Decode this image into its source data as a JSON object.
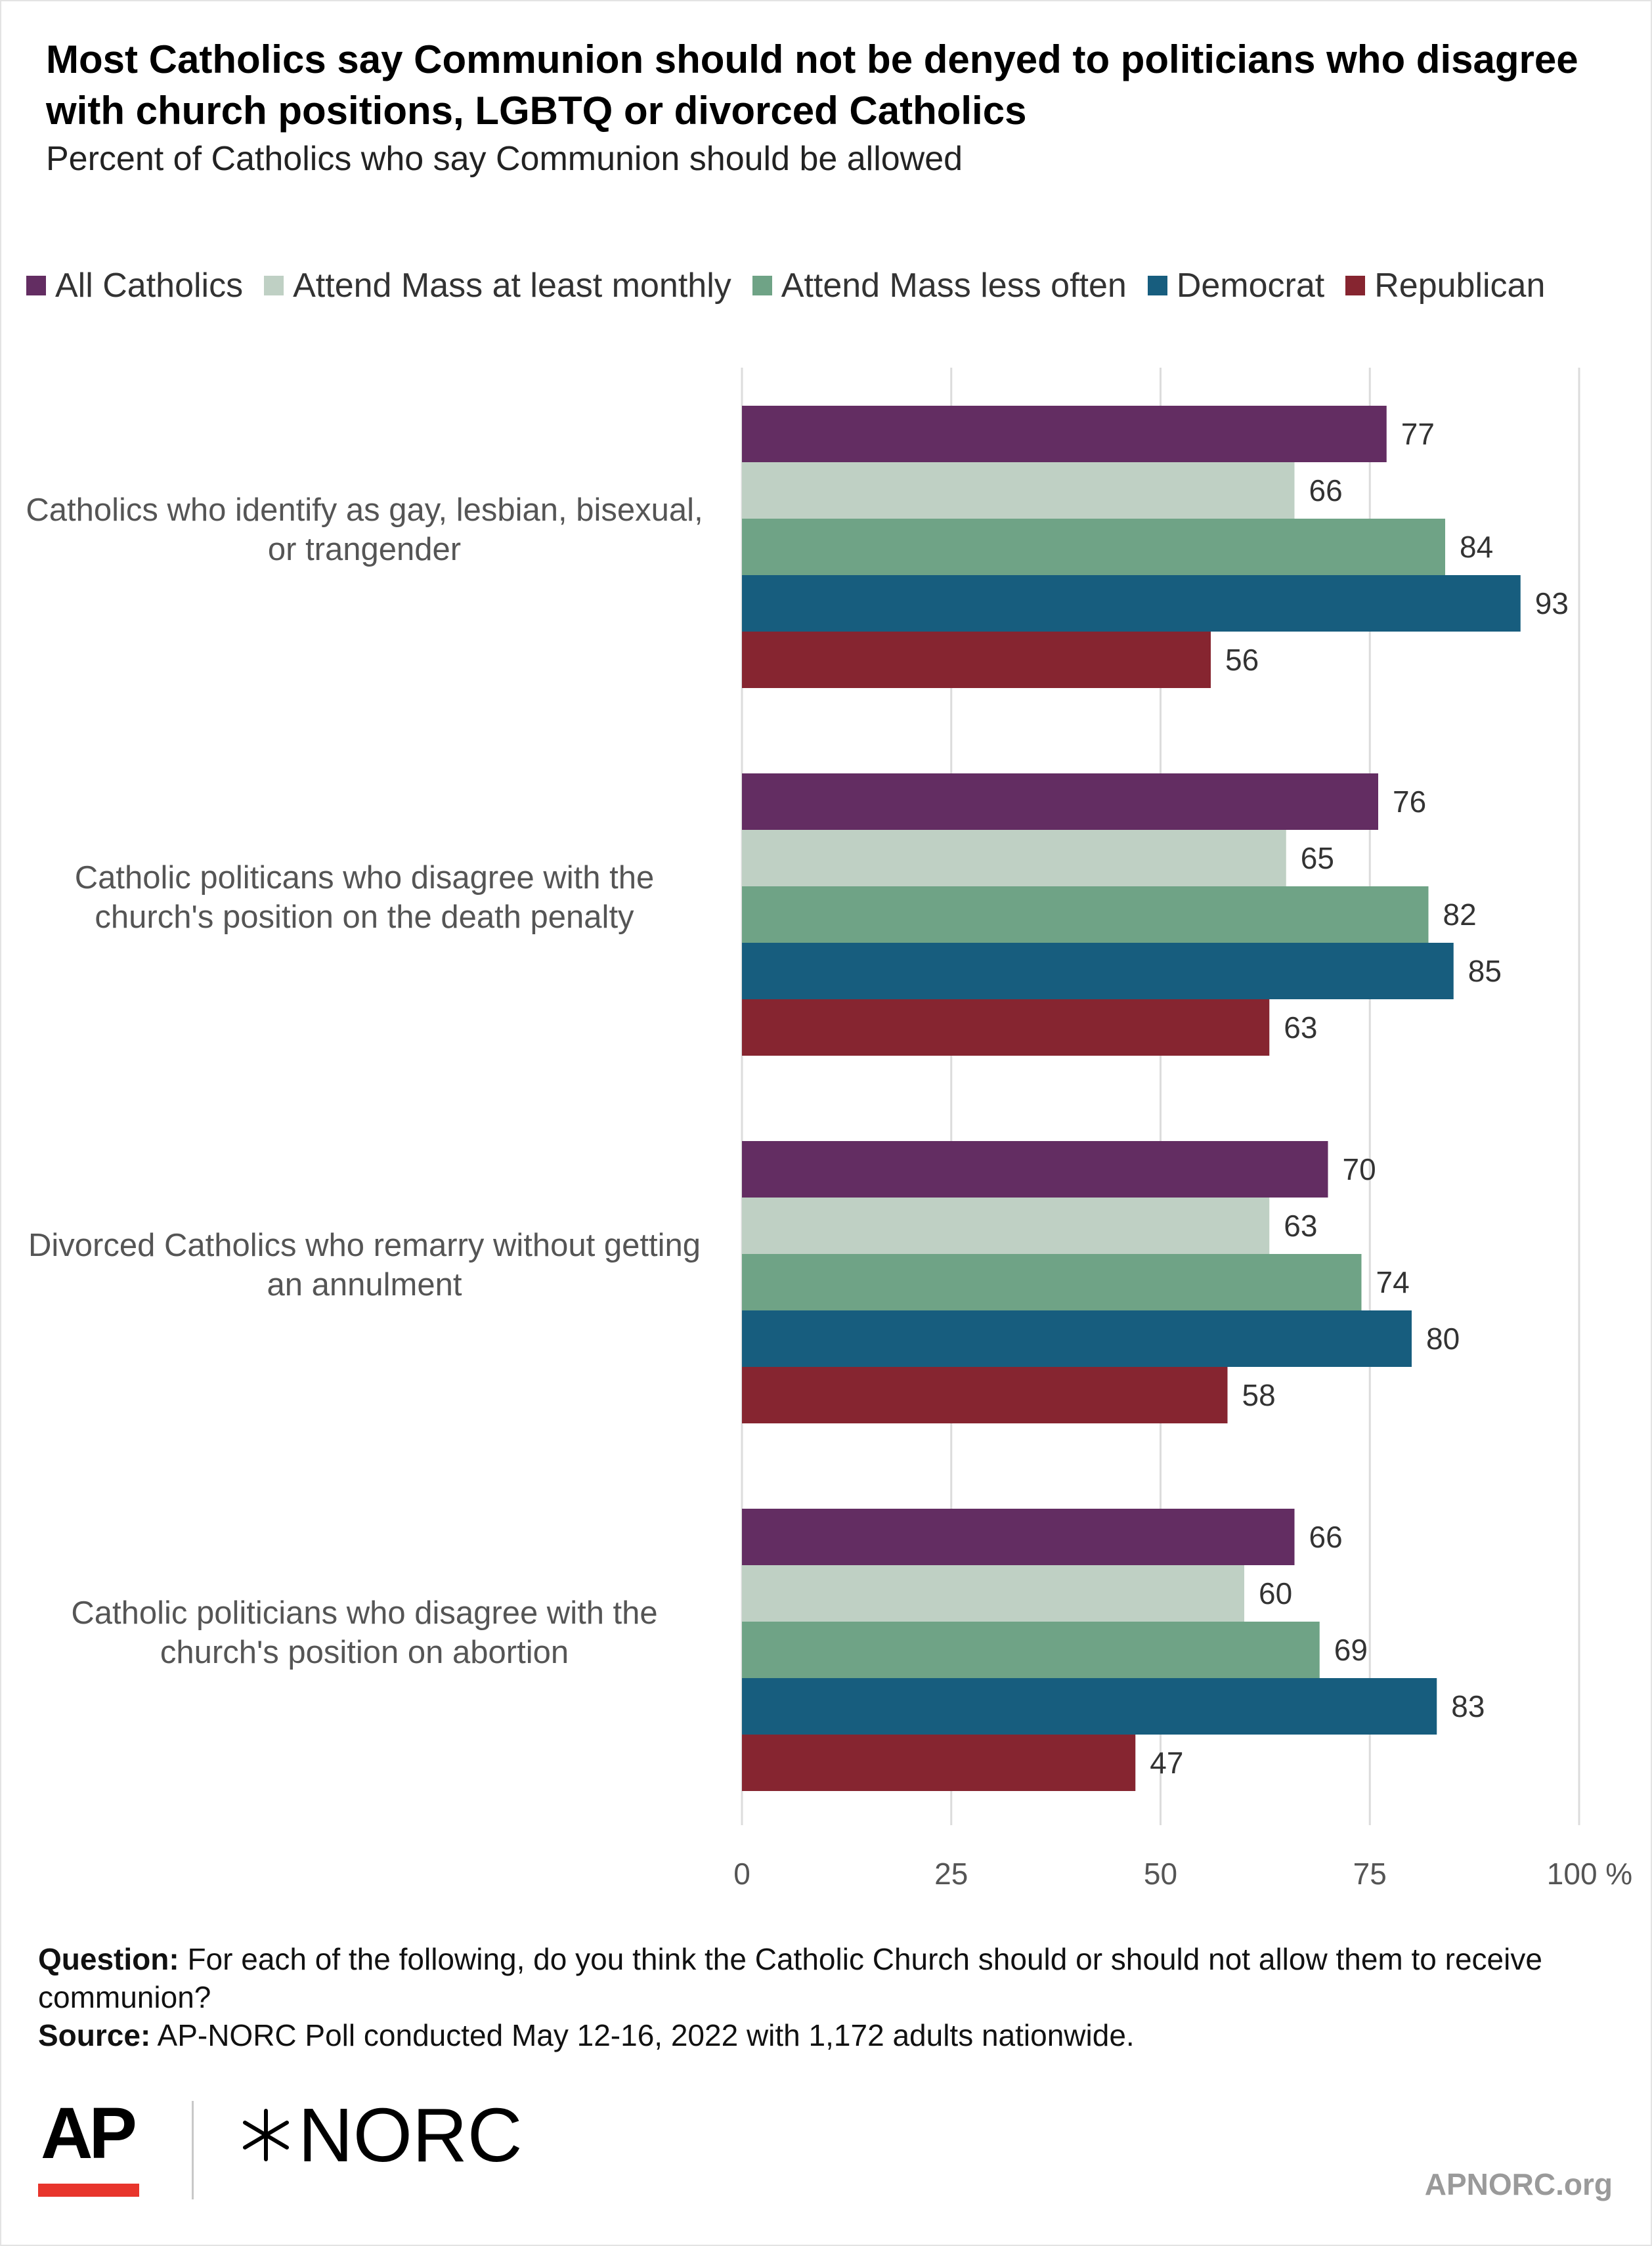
{
  "title": "Most Catholics say Communion should not be denyed to politicians who disagree with church positions, LGBTQ or divorced Catholics",
  "subtitle": "Percent of Catholics who say Communion should be allowed",
  "legend": [
    {
      "label": "All Catholics",
      "color": "#632d62"
    },
    {
      "label": "Attend Mass at least monthly",
      "color": "#bfd0c4"
    },
    {
      "label": "Attend Mass less often",
      "color": "#6fa386"
    },
    {
      "label": "Democrat",
      "color": "#175d7e"
    },
    {
      "label": "Republican",
      "color": "#862530"
    }
  ],
  "chart_data": {
    "type": "bar",
    "orientation": "horizontal",
    "categories": [
      [
        "Catholics who identify as gay, lesbian, bisexual,",
        "or trangender"
      ],
      [
        "Catholic politicans who disagree with the",
        "church's position on the death penalty"
      ],
      [
        "Divorced Catholics who remarry without getting",
        "an annulment"
      ],
      [
        "Catholic politicians who disagree with the",
        "church's position on abortion"
      ]
    ],
    "series": [
      {
        "name": "All Catholics",
        "color": "#632d62",
        "values": [
          77,
          76,
          70,
          66
        ]
      },
      {
        "name": "Attend Mass at least monthly",
        "color": "#bfd0c4",
        "values": [
          66,
          65,
          63,
          60
        ]
      },
      {
        "name": "Attend Mass less often",
        "color": "#6fa386",
        "values": [
          84,
          82,
          74,
          69
        ]
      },
      {
        "name": "Democrat",
        "color": "#175d7e",
        "values": [
          93,
          85,
          80,
          83
        ]
      },
      {
        "name": "Republican",
        "color": "#862530",
        "values": [
          56,
          63,
          58,
          47
        ]
      }
    ],
    "xlim": [
      0,
      100
    ],
    "xticks": [
      "0",
      "25",
      "50",
      "75",
      "100 %"
    ],
    "grid": true,
    "legend_position": "top"
  },
  "footer": {
    "question_label": "Question:",
    "question_text": "For each of the following, do you think the Catholic Church should or should not allow them to receive communion?",
    "source_label": "Source:",
    "source_text": "AP-NORC Poll conducted May 12-16, 2022 with 1,172 adults nationwide."
  },
  "logos": {
    "ap": "AP",
    "norc": "NORC",
    "site": "APNORC.org"
  }
}
